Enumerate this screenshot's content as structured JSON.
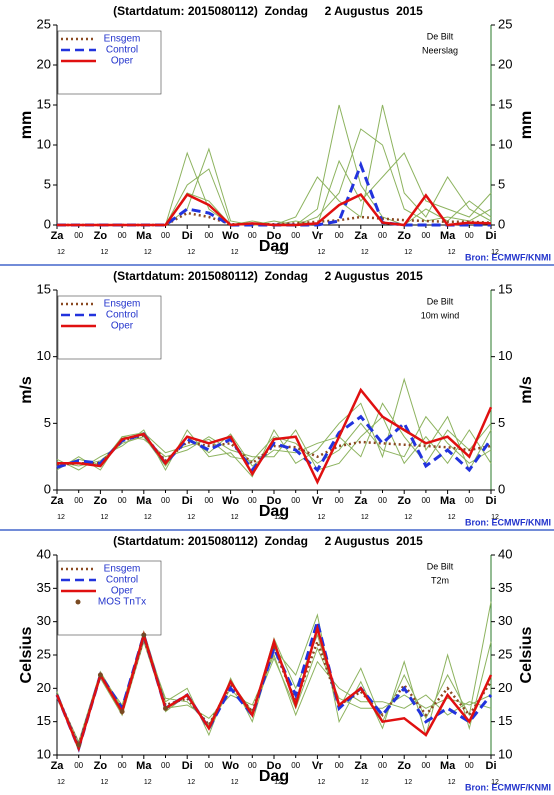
{
  "chart_data": [
    {
      "type": "line",
      "title": "(Startdatum: 2015080112)  Zondag     2 Augustus  2015",
      "annotations": [
        "De Bilt",
        "Neerslag"
      ],
      "ylabel": "mm",
      "xlabel": "Dag",
      "source": "Bron: ECMWF/KNMI",
      "x": [
        0,
        12,
        24,
        36,
        48,
        60,
        72,
        84,
        96,
        108,
        120,
        132,
        144,
        156,
        168,
        180,
        192,
        204,
        216,
        228,
        240
      ],
      "xlim": [
        0,
        240
      ],
      "xticks": [
        {
          "value": 0,
          "label": "Za",
          "sublabel": "12"
        },
        {
          "value": 24,
          "label": "Zo",
          "sublabel": "12"
        },
        {
          "value": 48,
          "label": "Ma",
          "sublabel": "12"
        },
        {
          "value": 72,
          "label": "Di",
          "sublabel": "12"
        },
        {
          "value": 96,
          "label": "Wo",
          "sublabel": "12"
        },
        {
          "value": 120,
          "label": "Do",
          "sublabel": "12"
        },
        {
          "value": 144,
          "label": "Vr",
          "sublabel": "12"
        },
        {
          "value": 168,
          "label": "Za",
          "sublabel": "12"
        },
        {
          "value": 192,
          "label": "Zo",
          "sublabel": "12"
        },
        {
          "value": 216,
          "label": "Ma",
          "sublabel": "12"
        },
        {
          "value": 240,
          "label": "Di",
          "sublabel": "12"
        }
      ],
      "xticks_minor": [
        {
          "value": 12,
          "label": "00"
        },
        {
          "value": 36,
          "label": "00"
        },
        {
          "value": 60,
          "label": "00"
        },
        {
          "value": 84,
          "label": "00"
        },
        {
          "value": 108,
          "label": "00"
        },
        {
          "value": 132,
          "label": "00"
        },
        {
          "value": 156,
          "label": "00"
        },
        {
          "value": 180,
          "label": "00"
        },
        {
          "value": 204,
          "label": "00"
        },
        {
          "value": 228,
          "label": "00"
        }
      ],
      "ylim": [
        0,
        25
      ],
      "yticks": [
        0,
        5,
        10,
        15,
        20,
        25
      ],
      "members_color": "#8db35f",
      "members": [
        [
          0,
          0,
          0,
          0,
          0,
          0,
          9,
          2,
          0,
          0.5,
          0,
          0,
          2,
          15,
          5,
          1,
          0,
          2,
          0.5,
          3,
          1
        ],
        [
          0,
          0,
          0,
          0,
          0,
          0,
          5,
          7,
          0,
          0,
          0.5,
          0,
          1,
          4,
          12,
          10,
          2,
          0.5,
          1,
          0.5,
          2
        ],
        [
          0,
          0,
          0,
          0,
          0,
          0,
          2,
          9.5,
          0.5,
          0,
          0,
          1,
          6,
          3,
          1,
          15,
          4,
          1,
          6,
          2,
          0.5
        ],
        [
          0,
          0,
          0,
          0,
          0,
          0,
          4,
          3,
          0,
          0,
          0,
          0.5,
          0,
          8,
          3,
          6,
          9,
          3,
          2,
          1,
          4
        ]
      ],
      "series": [
        {
          "name": "Ensgem",
          "color": "#8b4a22",
          "style": "dotted",
          "values": [
            0,
            0,
            0,
            0,
            0,
            0,
            1.5,
            1,
            0.1,
            0.1,
            0.1,
            0.2,
            0.4,
            0.6,
            1,
            0.8,
            0.6,
            0.5,
            0.4,
            0.4,
            0.3
          ]
        },
        {
          "name": "Control",
          "color": "#2233dd",
          "style": "dashed",
          "values": [
            0,
            0,
            0,
            0,
            0,
            0,
            2,
            1.5,
            0,
            0,
            0,
            0,
            0,
            0.5,
            7.5,
            0.3,
            0,
            0,
            0,
            0,
            0
          ]
        },
        {
          "name": "Oper",
          "color": "#e01010",
          "style": "solid",
          "values": [
            0,
            0,
            0,
            0,
            0,
            0,
            3.8,
            2.5,
            0,
            0.2,
            0,
            0,
            0.2,
            2.5,
            3.8,
            0.3,
            0,
            3.7,
            0,
            0.3,
            0.2
          ]
        }
      ]
    },
    {
      "type": "line",
      "title": "(Startdatum: 2015080112)  Zondag     2 Augustus  2015",
      "annotations": [
        "De Bilt",
        "10m wind"
      ],
      "ylabel": "m/s",
      "xlabel": "Dag",
      "source": "Bron: ECMWF/KNMI",
      "x": [
        0,
        12,
        24,
        36,
        48,
        60,
        72,
        84,
        96,
        108,
        120,
        132,
        144,
        156,
        168,
        180,
        192,
        204,
        216,
        228,
        240
      ],
      "xlim": [
        0,
        240
      ],
      "xticks": [
        {
          "value": 0,
          "label": "Za",
          "sublabel": "12"
        },
        {
          "value": 24,
          "label": "Zo",
          "sublabel": "12"
        },
        {
          "value": 48,
          "label": "Ma",
          "sublabel": "12"
        },
        {
          "value": 72,
          "label": "Di",
          "sublabel": "12"
        },
        {
          "value": 96,
          "label": "Wo",
          "sublabel": "12"
        },
        {
          "value": 120,
          "label": "Do",
          "sublabel": "12"
        },
        {
          "value": 144,
          "label": "Vr",
          "sublabel": "12"
        },
        {
          "value": 168,
          "label": "Za",
          "sublabel": "12"
        },
        {
          "value": 192,
          "label": "Zo",
          "sublabel": "12"
        },
        {
          "value": 216,
          "label": "Ma",
          "sublabel": "12"
        },
        {
          "value": 240,
          "label": "Di",
          "sublabel": "12"
        }
      ],
      "xticks_minor": [
        {
          "value": 12,
          "label": "00"
        },
        {
          "value": 36,
          "label": "00"
        },
        {
          "value": 60,
          "label": "00"
        },
        {
          "value": 84,
          "label": "00"
        },
        {
          "value": 108,
          "label": "00"
        },
        {
          "value": 132,
          "label": "00"
        },
        {
          "value": 156,
          "label": "00"
        },
        {
          "value": 180,
          "label": "00"
        },
        {
          "value": 204,
          "label": "00"
        },
        {
          "value": 228,
          "label": "00"
        }
      ],
      "ylim": [
        0,
        15
      ],
      "yticks": [
        0,
        5,
        10,
        15
      ],
      "members_color": "#8db35f",
      "members": [
        [
          2.3,
          1.5,
          2.5,
          3.3,
          4.5,
          1.5,
          4.5,
          2.5,
          2.8,
          1,
          4.5,
          2,
          3,
          5,
          6.5,
          2.5,
          8.3,
          3,
          5.5,
          1.5,
          4.5
        ],
        [
          1.5,
          2.5,
          1.5,
          4,
          3.8,
          2.5,
          3,
          4,
          3,
          2.5,
          2.5,
          4.5,
          1.5,
          2,
          4,
          5.5,
          2,
          4,
          2,
          4.5,
          2
        ],
        [
          2.1,
          1.8,
          2.2,
          3.5,
          4,
          1.8,
          4,
          2.8,
          4.2,
          1.8,
          3,
          2.8,
          3.5,
          4,
          2.5,
          6.5,
          4,
          2,
          4.5,
          3,
          5
        ],
        [
          1.8,
          2.3,
          1.9,
          4,
          4.3,
          2.8,
          3.3,
          3.8,
          2.5,
          2.2,
          4,
          3.5,
          2,
          3,
          5,
          3,
          2.5,
          5.5,
          3.5,
          2,
          3
        ]
      ],
      "series": [
        {
          "name": "Ensgem",
          "color": "#8b4a22",
          "style": "dotted",
          "values": [
            1.9,
            2,
            2,
            3.7,
            4.1,
            2.2,
            3.6,
            3.3,
            3.5,
            2,
            3.3,
            3.2,
            2.5,
            3.3,
            3.6,
            3.5,
            3.4,
            3.3,
            3.2,
            3,
            3.3
          ]
        },
        {
          "name": "Control",
          "color": "#2233dd",
          "style": "dashed",
          "values": [
            1.7,
            2.2,
            2,
            3.7,
            4.2,
            2,
            3.8,
            3,
            3.8,
            1.5,
            3.5,
            3,
            1.5,
            4.3,
            5.5,
            3.5,
            5,
            1.8,
            3,
            1.5,
            3.8
          ]
        },
        {
          "name": "Oper",
          "color": "#e01010",
          "style": "solid",
          "values": [
            2,
            2,
            1.8,
            3.8,
            4.2,
            2,
            4,
            3.5,
            4,
            1.2,
            3.8,
            4,
            0.6,
            4,
            7.5,
            5.5,
            4.5,
            3.5,
            4,
            2.5,
            6.2
          ]
        }
      ]
    },
    {
      "type": "line",
      "title": "(Startdatum: 2015080112)  Zondag     2 Augustus  2015",
      "annotations": [
        "De Bilt",
        "T2m"
      ],
      "ylabel": "Celsius",
      "xlabel": "Dag",
      "source": "Bron: ECMWF/KNMI",
      "x": [
        0,
        12,
        24,
        36,
        48,
        60,
        72,
        84,
        96,
        108,
        120,
        132,
        144,
        156,
        168,
        180,
        192,
        204,
        216,
        228,
        240
      ],
      "xlim": [
        0,
        240
      ],
      "xticks": [
        {
          "value": 0,
          "label": "Za",
          "sublabel": "12"
        },
        {
          "value": 24,
          "label": "Zo",
          "sublabel": "12"
        },
        {
          "value": 48,
          "label": "Ma",
          "sublabel": "12"
        },
        {
          "value": 72,
          "label": "Di",
          "sublabel": "12"
        },
        {
          "value": 96,
          "label": "Wo",
          "sublabel": "12"
        },
        {
          "value": 120,
          "label": "Do",
          "sublabel": "12"
        },
        {
          "value": 144,
          "label": "Vr",
          "sublabel": "12"
        },
        {
          "value": 168,
          "label": "Za",
          "sublabel": "12"
        },
        {
          "value": 192,
          "label": "Zo",
          "sublabel": "12"
        },
        {
          "value": 216,
          "label": "Ma",
          "sublabel": "12"
        },
        {
          "value": 240,
          "label": "Di",
          "sublabel": "12"
        }
      ],
      "xticks_minor": [
        {
          "value": 12,
          "label": "00"
        },
        {
          "value": 36,
          "label": "00"
        },
        {
          "value": 60,
          "label": "00"
        },
        {
          "value": 84,
          "label": "00"
        },
        {
          "value": 108,
          "label": "00"
        },
        {
          "value": 132,
          "label": "00"
        },
        {
          "value": 156,
          "label": "00"
        },
        {
          "value": 180,
          "label": "00"
        },
        {
          "value": 204,
          "label": "00"
        },
        {
          "value": 228,
          "label": "00"
        }
      ],
      "ylim": [
        10,
        40
      ],
      "yticks": [
        10,
        15,
        20,
        25,
        30,
        35,
        40
      ],
      "members_color": "#8db35f",
      "members": [
        [
          19,
          12,
          22.5,
          17,
          28.5,
          18,
          20,
          13,
          21.5,
          15,
          26,
          22,
          31,
          15,
          21,
          14,
          24,
          13,
          25,
          14,
          27
        ],
        [
          19.5,
          11,
          21.5,
          16,
          27,
          17,
          17.5,
          15.5,
          19,
          17.5,
          25,
          16,
          24,
          20,
          18,
          18,
          17,
          19,
          16,
          18,
          17
        ],
        [
          18.5,
          11.5,
          22,
          17.5,
          28,
          16.5,
          19,
          14,
          20,
          16,
          27.5,
          20,
          28,
          17,
          23,
          15,
          22,
          15.5,
          22,
          16,
          33
        ],
        [
          19,
          11,
          22,
          16,
          27.5,
          18.5,
          18,
          14.5,
          21,
          16.5,
          24.5,
          17,
          26,
          18.5,
          17,
          17,
          19,
          17,
          18.5,
          17.5,
          19
        ]
      ],
      "series": [
        {
          "name": "Ensgem",
          "color": "#8b4a22",
          "style": "dotted",
          "values": [
            19,
            11.5,
            22,
            16.5,
            27.5,
            17.5,
            18.5,
            14.5,
            20.5,
            16.5,
            26,
            18,
            27,
            17.5,
            19.5,
            16,
            20.5,
            16,
            20,
            16,
            21
          ]
        },
        {
          "name": "Control",
          "color": "#2233dd",
          "style": "dashed",
          "values": [
            19,
            11,
            22,
            17,
            28,
            17,
            19,
            14,
            20,
            16,
            26,
            19,
            30,
            17,
            20,
            16,
            20,
            15,
            17,
            15,
            19
          ]
        },
        {
          "name": "Oper",
          "color": "#e01010",
          "style": "solid",
          "values": [
            19,
            11,
            22,
            16.5,
            28,
            17,
            19,
            14,
            21,
            16,
            27,
            17.5,
            29,
            17.5,
            20,
            15,
            15.5,
            13,
            19,
            15,
            22
          ]
        },
        {
          "name": "MOS TnTx",
          "color": "#7a4a22",
          "style": "dots",
          "values": [
            null,
            11.5,
            22,
            16.5,
            28,
            17,
            null,
            null,
            null,
            null,
            null,
            null,
            null,
            null,
            null,
            null,
            null,
            null,
            null,
            null,
            null
          ]
        }
      ]
    }
  ]
}
